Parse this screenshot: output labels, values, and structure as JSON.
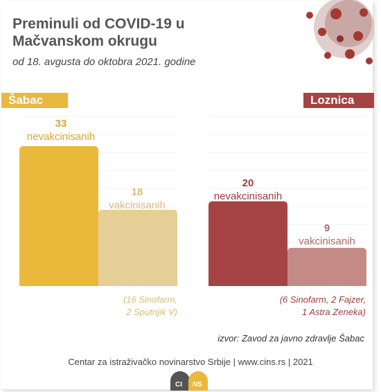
{
  "header": {
    "title": "Preminuli od COVID-19 u Mačvanskom okrugu",
    "subtitle": "od 18. avgusta do oktobra 2021. godine"
  },
  "colors": {
    "sabac_unvacc": "#eab83b",
    "sabac_vacc": "#e5cf96",
    "loznica_unvacc": "#a64344",
    "loznica_vacc": "#c48a86",
    "sabac_text": "#d9a72f",
    "sabac_text_light": "#d9bd78",
    "loznica_text": "#9b3b3c",
    "loznica_text_light": "#a86a67",
    "grid": "#f0f0f0"
  },
  "chart_data": [
    {
      "type": "bar",
      "title": "Šabac",
      "categories": [
        "nevakcinisanih",
        "vakcinisanih"
      ],
      "values": [
        33,
        18
      ],
      "ylim": [
        0,
        35
      ],
      "note": [
        "(16 Sinofarm,",
        "2 Sputnjik V)"
      ]
    },
    {
      "type": "bar",
      "title": "Loznica",
      "categories": [
        "nevakcinisanih",
        "vakcinisanih"
      ],
      "values": [
        20,
        9
      ],
      "ylim": [
        0,
        35
      ],
      "note": [
        "(6 Sinofarm, 2 Fajzer,",
        "1 Astra Zeneka)"
      ]
    }
  ],
  "source": "izvor: Zavod za javno zdravlje Šabac",
  "footer": "Centar za istraživačko novinarstvo Srbije | www.cins.rs | 2021",
  "logo_icon": "cins-logo-icon",
  "decoration_icon": "coronavirus-icon"
}
